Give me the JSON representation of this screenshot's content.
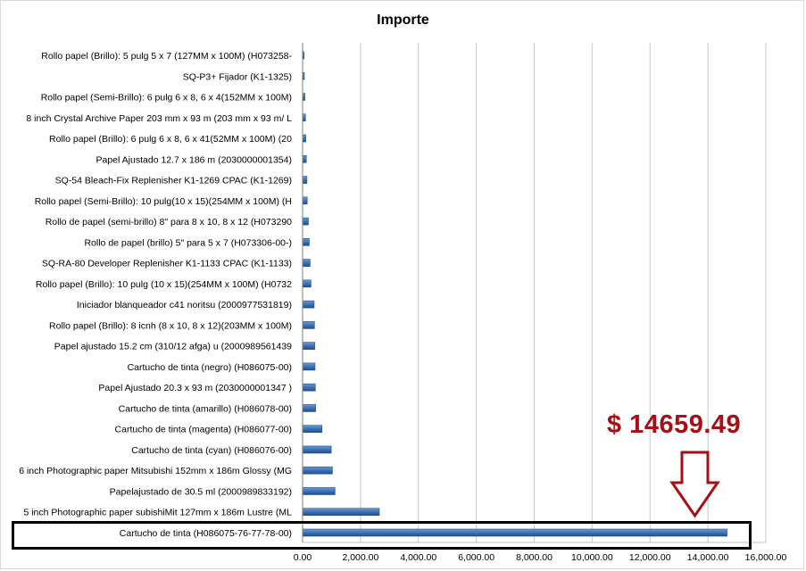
{
  "chart_data": {
    "type": "bar",
    "orientation": "horizontal",
    "title": "Importe",
    "categories": [
      "Rollo papel (Brillo): 5 pulg 5 x 7 (127MM x 100M) (H073258-",
      "SQ-P3+ Fijador (K1-1325)",
      "Rollo papel (Semi-Brillo): 6 pulg 6 x 8, 6 x 4(152MM x 100M)",
      "8 inch Crystal Archive Paper 203 mm x 93 m (203 mm x 93 m/ L",
      "Rollo papel (Brillo): 6 pulg  6 x 8, 6 x 41(52MM x 100M) (20",
      "Papel Ajustado 12.7 x 186 m (2030000001354)",
      "SQ-54 Bleach-Fix Replenisher K1-1269 CPAC (K1-1269)",
      "Rollo papel (Semi-Brillo): 10 pulg(10 x 15)(254MM x 100M) (H",
      "Rollo de papel (semi-brillo) 8\" para 8 x 10, 8 x 12 (H073290",
      "Rollo de papel (brillo) 5\" para 5 x 7 (H073306-00-)",
      "SQ-RA-80 Developer Replenisher K1-1133 CPAC (K1-1133)",
      "Rollo papel (Brillo): 10 pulg (10 x 15)(254MM x 100M) (H0732",
      "Iniciador blanqueador c41 noritsu (2000977531819)",
      "Rollo papel (Brillo): 8 icnh (8 x 10, 8 x 12)(203MM x 100M)",
      "Papel ajustado 15.2 cm (310/12 afga) u (2000989561439",
      "Cartucho de tinta (negro) (H086075-00)",
      "Papel Ajustado 20.3 x 93 m (2030000001347 )",
      "Cartucho de tinta (amarillo) (H086078-00)",
      "Cartucho de tinta (magenta) (H086077-00)",
      "Cartucho de tinta (cyan) (H086076-00)",
      "6 inch Photographic paper Mitsubishi 152mm x 186m Glossy (MG",
      "Papelajustado de 30.5 ml (2000989833192)",
      "5 inch Photographic paper subishiMit 127mm x 186m Lustre (ML",
      "Cartucho de tinta (H086075-76-77-78-00)"
    ],
    "values": [
      50,
      60,
      80,
      100,
      110,
      130,
      150,
      160,
      200,
      230,
      260,
      290,
      400,
      410,
      420,
      430,
      440,
      450,
      670,
      990,
      1030,
      1120,
      2650,
      14659.49
    ],
    "xlim": [
      0,
      16000
    ],
    "xticks": [
      "0.00",
      "2,000.00",
      "4,000.00",
      "6,000.00",
      "8,000.00",
      "10,000.00",
      "12,000.00",
      "14,000.00",
      "16,000.00"
    ],
    "grid": true,
    "legend": "none"
  },
  "annotation": {
    "text": "$ 14659.49",
    "color": "#a50f15",
    "highlighted_category": "Cartucho de tinta (H086075-76-77-78-00)"
  },
  "colors": {
    "bar": "#3d72b4",
    "bar_dark": "#1f4e8c",
    "grid": "#c8c8c8",
    "arrow": "#a50f15"
  }
}
